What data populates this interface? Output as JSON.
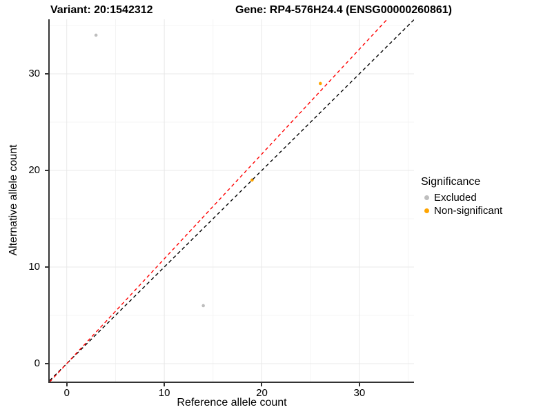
{
  "titles": {
    "variant": "Variant: 20:1542312",
    "gene": "Gene: RP4-576H24.4 (ENSG00000260861)"
  },
  "axes": {
    "x": {
      "label": "Reference allele count",
      "ticks": [
        0,
        10,
        20,
        30
      ],
      "minor_ticks": [
        5,
        15,
        25,
        35
      ]
    },
    "y": {
      "label": "Alternative allele count",
      "ticks": [
        0,
        10,
        20,
        30
      ],
      "minor_ticks": [
        5,
        15,
        25,
        35
      ]
    }
  },
  "legend": {
    "title": "Significance",
    "items": [
      {
        "label": "Excluded",
        "color": "#bebebe"
      },
      {
        "label": "Non-significant",
        "color": "#ffa500"
      }
    ]
  },
  "colors": {
    "excluded_point": "#bebebe",
    "non_significant_point": "#ffa500",
    "identity_line": "#000000",
    "fit_line": "#ff0000",
    "grid_major": "#e8e8e8",
    "grid_minor": "#f4f4f4",
    "axis_line": "#333333"
  },
  "chart_data": {
    "type": "scatter",
    "title_left": "Variant: 20:1542312",
    "title_right": "Gene: RP4-576H24.4 (ENSG00000260861)",
    "xlabel": "Reference allele count",
    "ylabel": "Alternative allele count",
    "xlim": [
      -1.75,
      35.6
    ],
    "ylim": [
      -1.86,
      35.64
    ],
    "x_ticks": [
      0,
      10,
      20,
      30
    ],
    "y_ticks": [
      0,
      10,
      20,
      30
    ],
    "x_minor_ticks": [
      5,
      15,
      25,
      35
    ],
    "y_minor_ticks": [
      5,
      15,
      25,
      35
    ],
    "grid": true,
    "legend_position": "right",
    "legend_title": "Significance",
    "series": [
      {
        "name": "Excluded",
        "color": "#bebebe",
        "points": [
          {
            "x": 3,
            "y": 34
          },
          {
            "x": 14,
            "y": 6
          }
        ]
      },
      {
        "name": "Non-significant",
        "color": "#ffa500",
        "points": [
          {
            "x": 19,
            "y": 19
          },
          {
            "x": 26,
            "y": 29
          }
        ]
      }
    ],
    "lines": [
      {
        "name": "identity",
        "slope": 1,
        "intercept": 0,
        "color": "#000000",
        "style": "dashed"
      },
      {
        "name": "fit",
        "slope": 1.085,
        "intercept": 0,
        "color": "#ff0000",
        "style": "dashed"
      }
    ]
  }
}
